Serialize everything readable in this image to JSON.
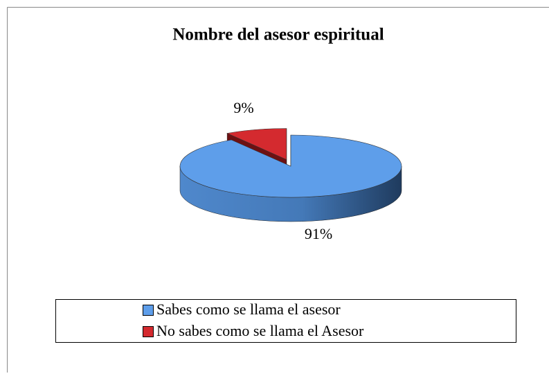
{
  "chart_data": {
    "type": "pie3d",
    "title": "Nombre del asesor espiritual",
    "categories": [
      "Sabes como se llama el asesor",
      "No sabes como se llama el Asesor"
    ],
    "values": [
      91,
      9
    ],
    "value_labels": [
      "91%",
      "9%"
    ],
    "colors": [
      "#5e9eea",
      "#d42a2f"
    ],
    "legend": "bottom"
  }
}
